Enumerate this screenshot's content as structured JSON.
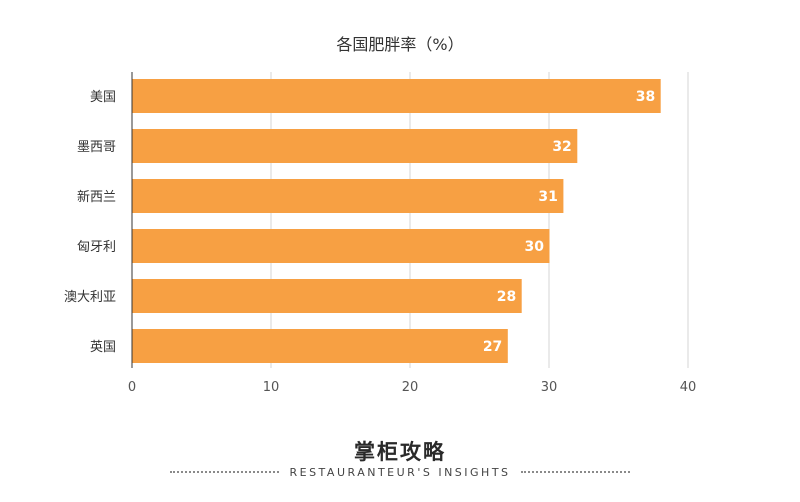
{
  "chart_data": {
    "type": "bar",
    "orientation": "horizontal",
    "title": "各国肥胖率（%）",
    "categories": [
      "美国",
      "墨西哥",
      "新西兰",
      "匈牙利",
      "澳大利亚",
      "英国"
    ],
    "values": [
      38,
      32,
      31,
      30,
      28,
      27
    ],
    "xlim": [
      0,
      40
    ],
    "xticks": [
      "0",
      "10",
      "20",
      "30",
      "40"
    ],
    "grid": "vertical",
    "bar_color": "#f7a043",
    "data_labels": true
  },
  "footer": {
    "brand": "掌柜攻略",
    "tagline": "RESTAURANTEUR'S INSIGHTS"
  }
}
